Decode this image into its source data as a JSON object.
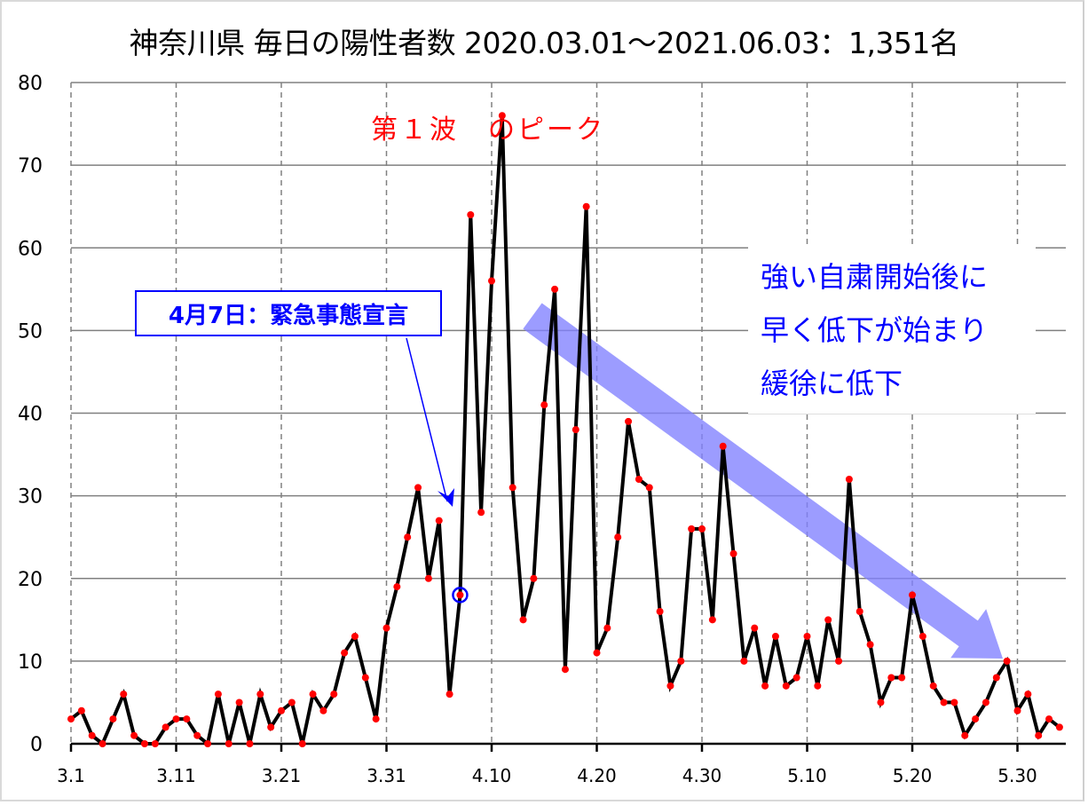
{
  "title": "神奈川県 毎日の陽性者数 2020.03.01～2021.06.03：1,351名",
  "annotations": {
    "peak_label": "第１波　のピーク",
    "declaration": "4月7日：緊急事態宣言",
    "note_lines": [
      "強い自粛開始後に",
      "早く低下が始まり",
      "緩徐に低下"
    ]
  },
  "colors": {
    "line": "#000000",
    "marker": "#ff0000",
    "annotation_blue": "#0000ff",
    "trend_arrow": "#8080ff",
    "gridline": "#808080"
  },
  "chart_data": {
    "type": "line",
    "title": "神奈川県 毎日の陽性者数 2020.03.01～2021.06.03：1,351名",
    "xlabel": "",
    "ylabel": "",
    "ylim": [
      0,
      80
    ],
    "yticks": [
      0,
      10,
      20,
      30,
      40,
      50,
      60,
      70,
      80
    ],
    "xtick_labels": [
      "3.1",
      "3.11",
      "3.21",
      "3.31",
      "4.10",
      "4.20",
      "4.30",
      "5.10",
      "5.20",
      "5.30"
    ],
    "grid": {
      "horizontal": "solid",
      "vertical": "dashed"
    },
    "legend": "none",
    "start_date": "3.1",
    "end_date": "6.3",
    "series": [
      {
        "name": "毎日の陽性者数",
        "values": [
          3,
          4,
          1,
          0,
          3,
          6,
          1,
          0,
          0,
          2,
          3,
          3,
          1,
          0,
          6,
          0,
          5,
          0,
          6,
          2,
          4,
          5,
          0,
          6,
          4,
          6,
          11,
          13,
          8,
          3,
          14,
          19,
          25,
          31,
          20,
          27,
          6,
          18,
          64,
          28,
          56,
          76,
          31,
          15,
          20,
          41,
          55,
          9,
          38,
          65,
          11,
          14,
          25,
          39,
          32,
          31,
          16,
          7,
          10,
          26,
          26,
          15,
          36,
          23,
          10,
          14,
          7,
          13,
          7,
          8,
          13,
          7,
          15,
          10,
          32,
          16,
          12,
          5,
          8,
          8,
          18,
          13,
          7,
          5,
          5,
          1,
          3,
          5,
          8,
          10,
          4,
          6,
          1,
          3,
          2
        ]
      }
    ],
    "highlights": [
      {
        "date": "4.7",
        "value": 18,
        "marker": "blue circle",
        "label": "4月7日：緊急事態宣言"
      },
      {
        "date": "4.11",
        "value": 76,
        "label": "第１波　のピーク"
      }
    ],
    "trend_arrow": {
      "from_date": "4.12",
      "from_value": 51,
      "to_date": "5.29",
      "to_value": 10,
      "label": [
        "強い自粛開始後に",
        "早く低下が始まり",
        "緩徐に低下"
      ]
    }
  }
}
